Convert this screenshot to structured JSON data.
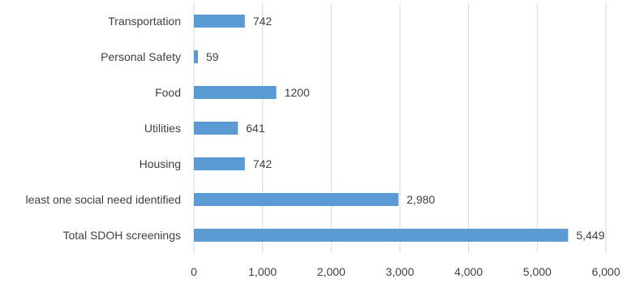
{
  "chart_data": {
    "type": "bar",
    "orientation": "horizontal",
    "categories": [
      "Transportation",
      "Personal Safety",
      "Food",
      "Utilities",
      "Housing",
      "least one social need identified",
      "Total SDOH screenings"
    ],
    "values": [
      742,
      59,
      1200,
      641,
      742,
      2980,
      5449
    ],
    "data_labels": [
      "742",
      "59",
      "1200",
      "641",
      "742",
      "2,980",
      "5,449"
    ],
    "xlim": [
      0,
      6000
    ],
    "xticks": [
      0,
      1000,
      2000,
      3000,
      4000,
      5000,
      6000
    ],
    "xtick_labels": [
      "0",
      "1,000",
      "2,000",
      "3,000",
      "4,000",
      "5,000",
      "6,000"
    ],
    "bar_color": "#5b9bd5",
    "grid": true,
    "legend": "none"
  }
}
